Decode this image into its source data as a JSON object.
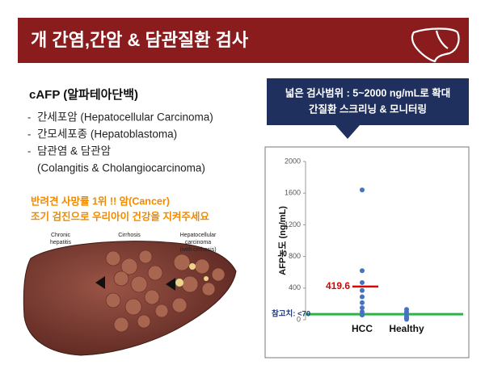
{
  "header": {
    "title": "개 간염,간암 & 담관질환 검사"
  },
  "left": {
    "heading": "cAFP (알파테아단백)",
    "items": [
      {
        "dash": "-",
        "lines": [
          "간세포암 (Hepatocellular Carcinoma)"
        ]
      },
      {
        "dash": "-",
        "lines": [
          "간모세포종 (Hepatoblastoma)"
        ]
      },
      {
        "dash": "-",
        "lines": [
          "담관염 & 담관암",
          "(Colangitis  & Cholangiocarcinoma)"
        ]
      }
    ],
    "highlight": [
      "반려견 사망률 1위 !! 암(Cancer)",
      "조기 검진으로 우리아이 건강을 지켜주세요"
    ],
    "illustration_labels": [
      [
        "Chronic",
        "hepatitis"
      ],
      [
        "Cirrhosis"
      ],
      [
        "Hepatocellular",
        "carcinoma",
        "(with cirrhosis)"
      ]
    ]
  },
  "callout": {
    "lines": [
      "넓은 검사범위 : 5~2000 ng/mL로 확대",
      "간질환 스크리닝 & 모니터링"
    ]
  },
  "chart_data": {
    "type": "scatter",
    "ylabel": "AFP농도 (ng/mL)",
    "categories": [
      "HCC",
      "Healthy"
    ],
    "values": [
      [
        1640,
        620,
        470,
        370,
        290,
        215,
        150,
        100,
        60
      ],
      [
        130,
        100,
        70,
        40,
        20,
        5
      ]
    ],
    "color": "#4472c4",
    "ylim": [
      0,
      2000
    ],
    "yticks": [
      0,
      400,
      800,
      1200,
      1600,
      2000
    ],
    "mean": 419.6,
    "mean_color": "#e00000",
    "reference_value": 70,
    "reference_label": "참고치: <70",
    "reference_color": "#2db34a"
  }
}
